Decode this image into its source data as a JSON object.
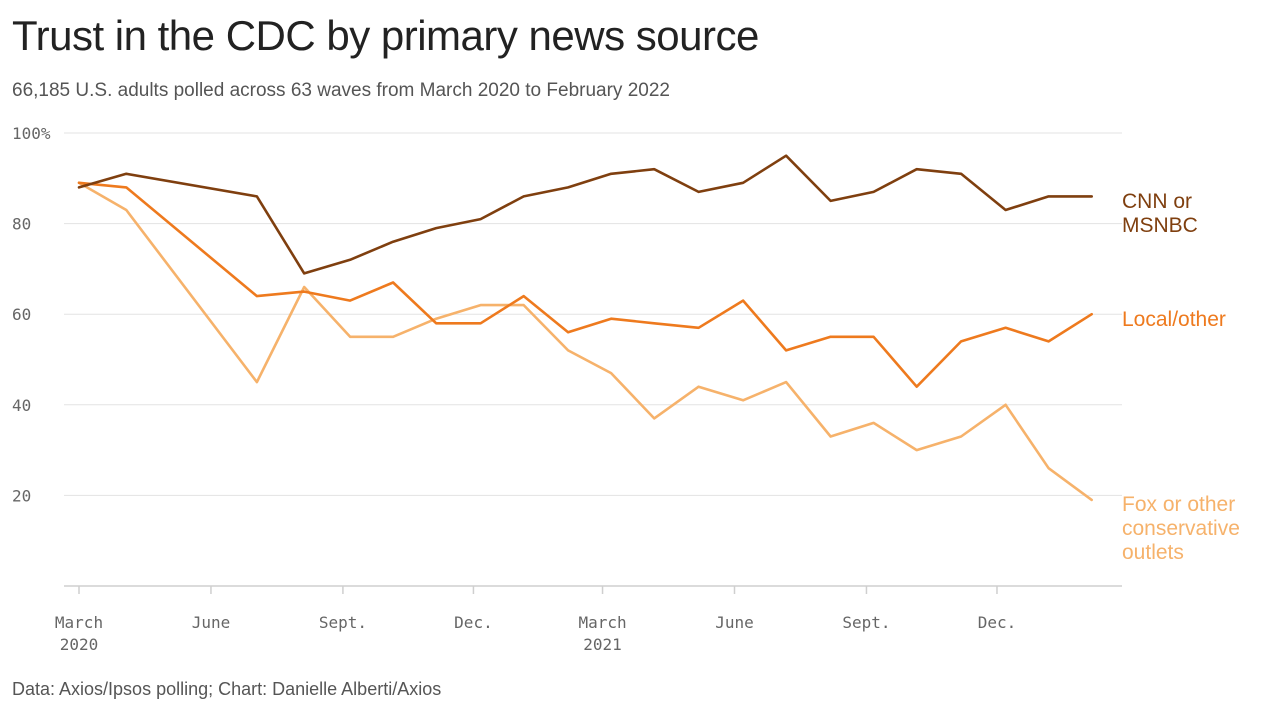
{
  "header": {
    "title": "Trust in the CDC by primary news source",
    "subtitle": "66,185 U.S. adults polled across 63 waves from March 2020 to February 2022"
  },
  "footer": {
    "source": "Data: Axios/Ipsos polling; Chart: Danielle Alberti/Axios"
  },
  "chart_data": {
    "type": "line",
    "ylim": [
      0,
      100
    ],
    "yticks": [
      {
        "value": 100,
        "label": "100%"
      },
      {
        "value": 80,
        "label": "80"
      },
      {
        "value": 60,
        "label": "60"
      },
      {
        "value": 40,
        "label": "40"
      },
      {
        "value": 20,
        "label": "20"
      }
    ],
    "xlim": [
      "2020-03-01",
      "2022-02-15"
    ],
    "xticks": [
      {
        "date": "2020-03-01",
        "label": "March",
        "sublabel": "2020"
      },
      {
        "date": "2020-06-01",
        "label": "June",
        "sublabel": ""
      },
      {
        "date": "2020-09-01",
        "label": "Sept.",
        "sublabel": ""
      },
      {
        "date": "2020-12-01",
        "label": "Dec.",
        "sublabel": ""
      },
      {
        "date": "2021-03-01",
        "label": "March",
        "sublabel": "2021"
      },
      {
        "date": "2021-06-01",
        "label": "June",
        "sublabel": ""
      },
      {
        "date": "2021-09-01",
        "label": "Sept.",
        "sublabel": ""
      },
      {
        "date": "2021-12-01",
        "label": "Dec.",
        "sublabel": ""
      }
    ],
    "grid": true,
    "x": [
      "2020-03-01",
      "2020-04-03",
      "2020-07-03",
      "2020-08-05",
      "2020-09-06",
      "2020-10-06",
      "2020-11-05",
      "2020-12-06",
      "2021-01-05",
      "2021-02-05",
      "2021-03-07",
      "2021-04-06",
      "2021-05-07",
      "2021-06-07",
      "2021-07-07",
      "2021-08-07",
      "2021-09-06",
      "2021-10-06",
      "2021-11-06",
      "2021-12-07",
      "2022-01-06",
      "2022-02-05"
    ],
    "series": [
      {
        "name": "CNN or MSNBC",
        "label_lines": [
          "CNN or",
          "MSNBC"
        ],
        "color": "#7f3f0f",
        "values": [
          88,
          91,
          86,
          69,
          72,
          76,
          79,
          81,
          86,
          88,
          91,
          92,
          87,
          89,
          95,
          85,
          87,
          92,
          91,
          83,
          86,
          86
        ]
      },
      {
        "name": "Local/other",
        "label_lines": [
          "Local/other"
        ],
        "color": "#ee7a1e",
        "values": [
          89,
          88,
          64,
          65,
          63,
          67,
          58,
          58,
          64,
          56,
          59,
          58,
          57,
          63,
          52,
          55,
          55,
          44,
          54,
          57,
          54,
          60
        ]
      },
      {
        "name": "Fox or other conservative outlets",
        "label_lines": [
          "Fox or other",
          "conservative",
          "outlets"
        ],
        "color": "#f6b26b",
        "values": [
          89,
          83,
          45,
          66,
          55,
          55,
          59,
          62,
          62,
          52,
          47,
          37,
          44,
          41,
          45,
          33,
          36,
          30,
          33,
          40,
          26,
          19
        ]
      }
    ]
  }
}
